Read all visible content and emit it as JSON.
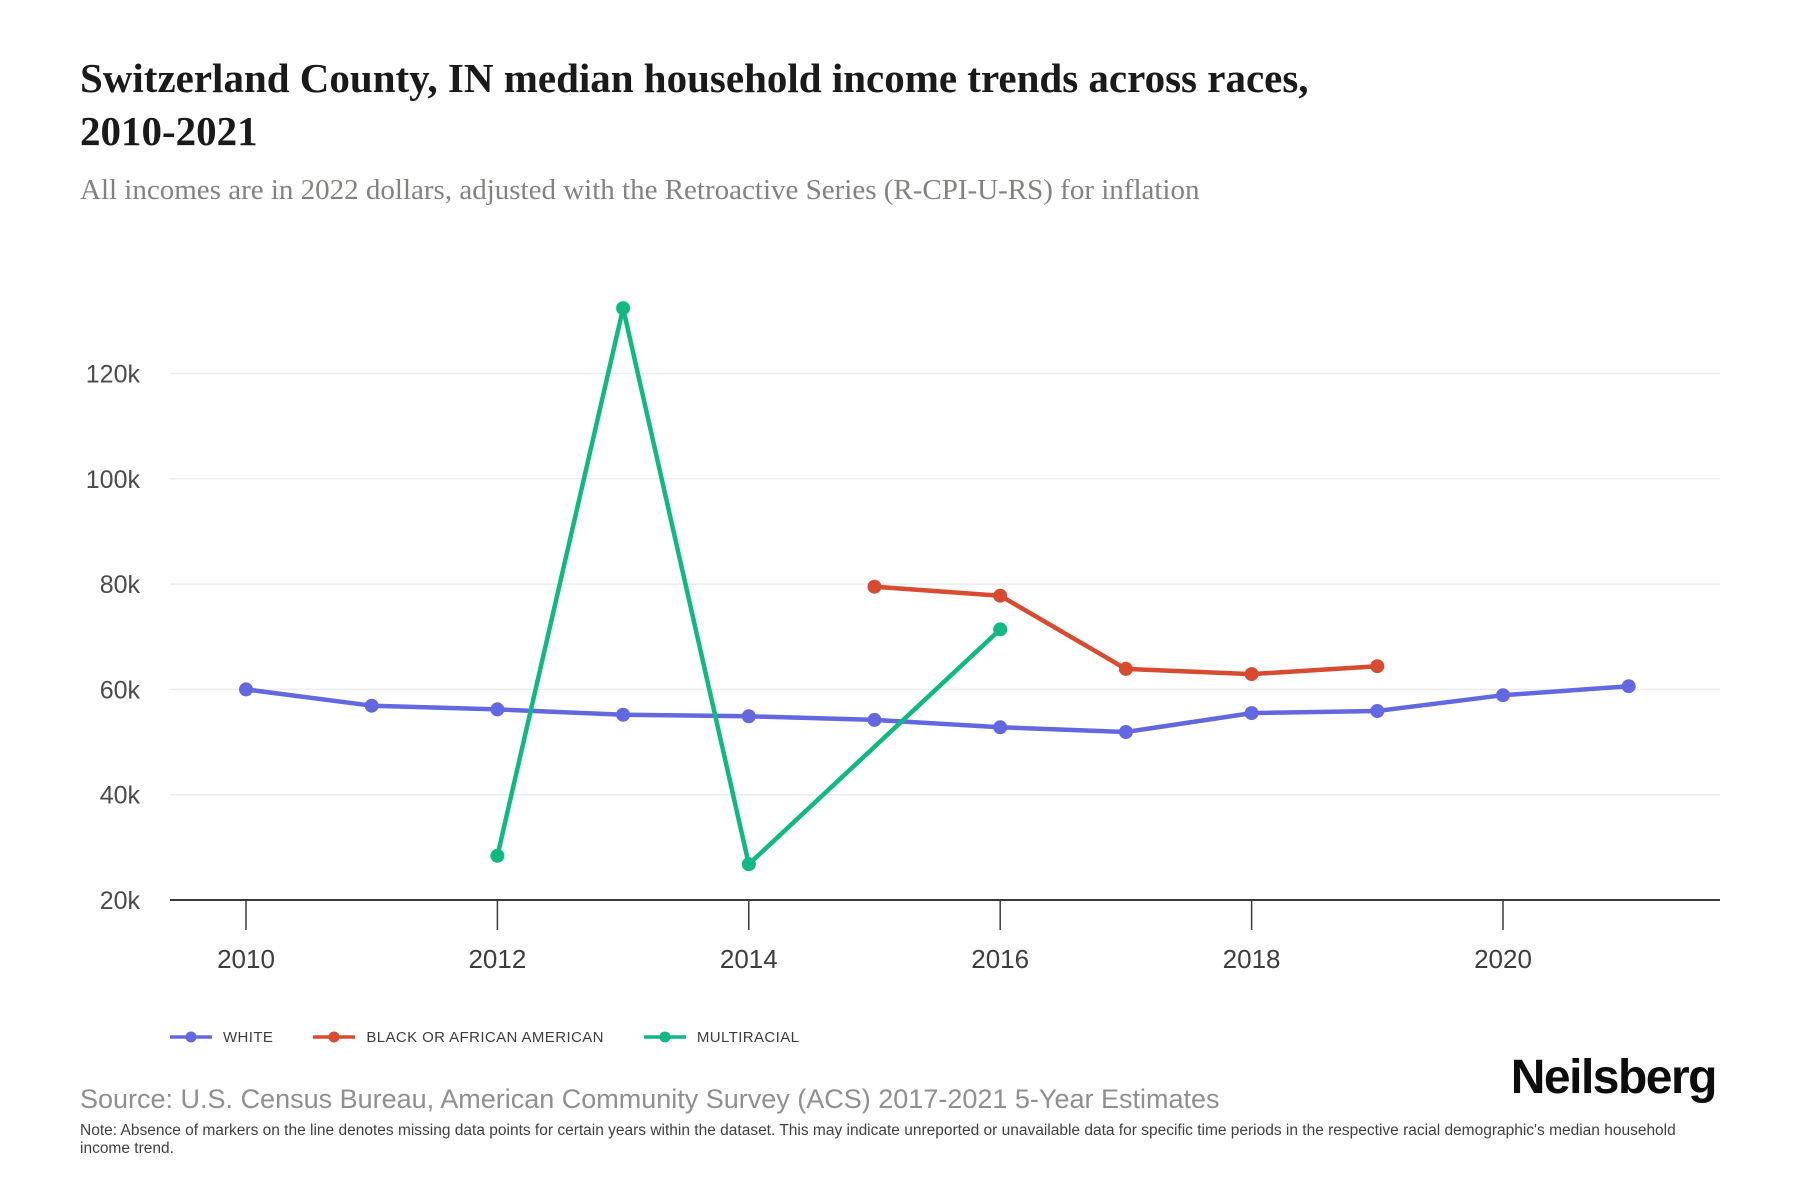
{
  "header": {
    "title": "Switzerland County, IN median household income trends across races, 2010-2021",
    "subtitle": "All incomes are in 2022 dollars, adjusted with the Retroactive Series (R-CPI-U-RS) for inflation"
  },
  "chart_data": {
    "type": "line",
    "title": "Switzerland County, IN median household income trends across races, 2010-2021",
    "xlabel": "",
    "ylabel": "",
    "x_range": [
      2010,
      2021
    ],
    "y_range": [
      20000,
      141000
    ],
    "grid": true,
    "legend_position": "bottom-left",
    "x_ticks": [
      2010,
      2012,
      2014,
      2016,
      2018,
      2020
    ],
    "y_ticks": [
      {
        "value": 20000,
        "label": "20k"
      },
      {
        "value": 40000,
        "label": "40k"
      },
      {
        "value": 60000,
        "label": "60k"
      },
      {
        "value": 80000,
        "label": "80k"
      },
      {
        "value": 100000,
        "label": "100k"
      },
      {
        "value": 120000,
        "label": "120k"
      }
    ],
    "series": [
      {
        "name": "WHITE",
        "color": "#6468e0",
        "x": [
          2010,
          2011,
          2012,
          2013,
          2014,
          2015,
          2016,
          2017,
          2018,
          2019,
          2020,
          2021
        ],
        "values": [
          60000,
          56900,
          56200,
          55200,
          54900,
          54200,
          52800,
          51900,
          55500,
          55900,
          58900,
          60600
        ]
      },
      {
        "name": "BLACK OR AFRICAN AMERICAN",
        "color": "#d84b30",
        "x": [
          2015,
          2016,
          2017,
          2018,
          2019
        ],
        "values": [
          79500,
          77800,
          63900,
          62900,
          64400
        ]
      },
      {
        "name": "MULTIRACIAL",
        "color": "#10b981",
        "x": [
          2012,
          2013,
          2014,
          2016
        ],
        "values": [
          28400,
          132400,
          26800,
          71400
        ]
      }
    ]
  },
  "footer": {
    "source": "Source: U.S. Census Bureau, American Community Survey (ACS) 2017-2021 5-Year Estimates",
    "note": "Note: Absence of markers on the line denotes missing data points for certain years within the dataset. This may indicate unreported or unavailable data for specific time periods in the respective racial demographic's median household income trend.",
    "brand": "Neilsberg"
  }
}
